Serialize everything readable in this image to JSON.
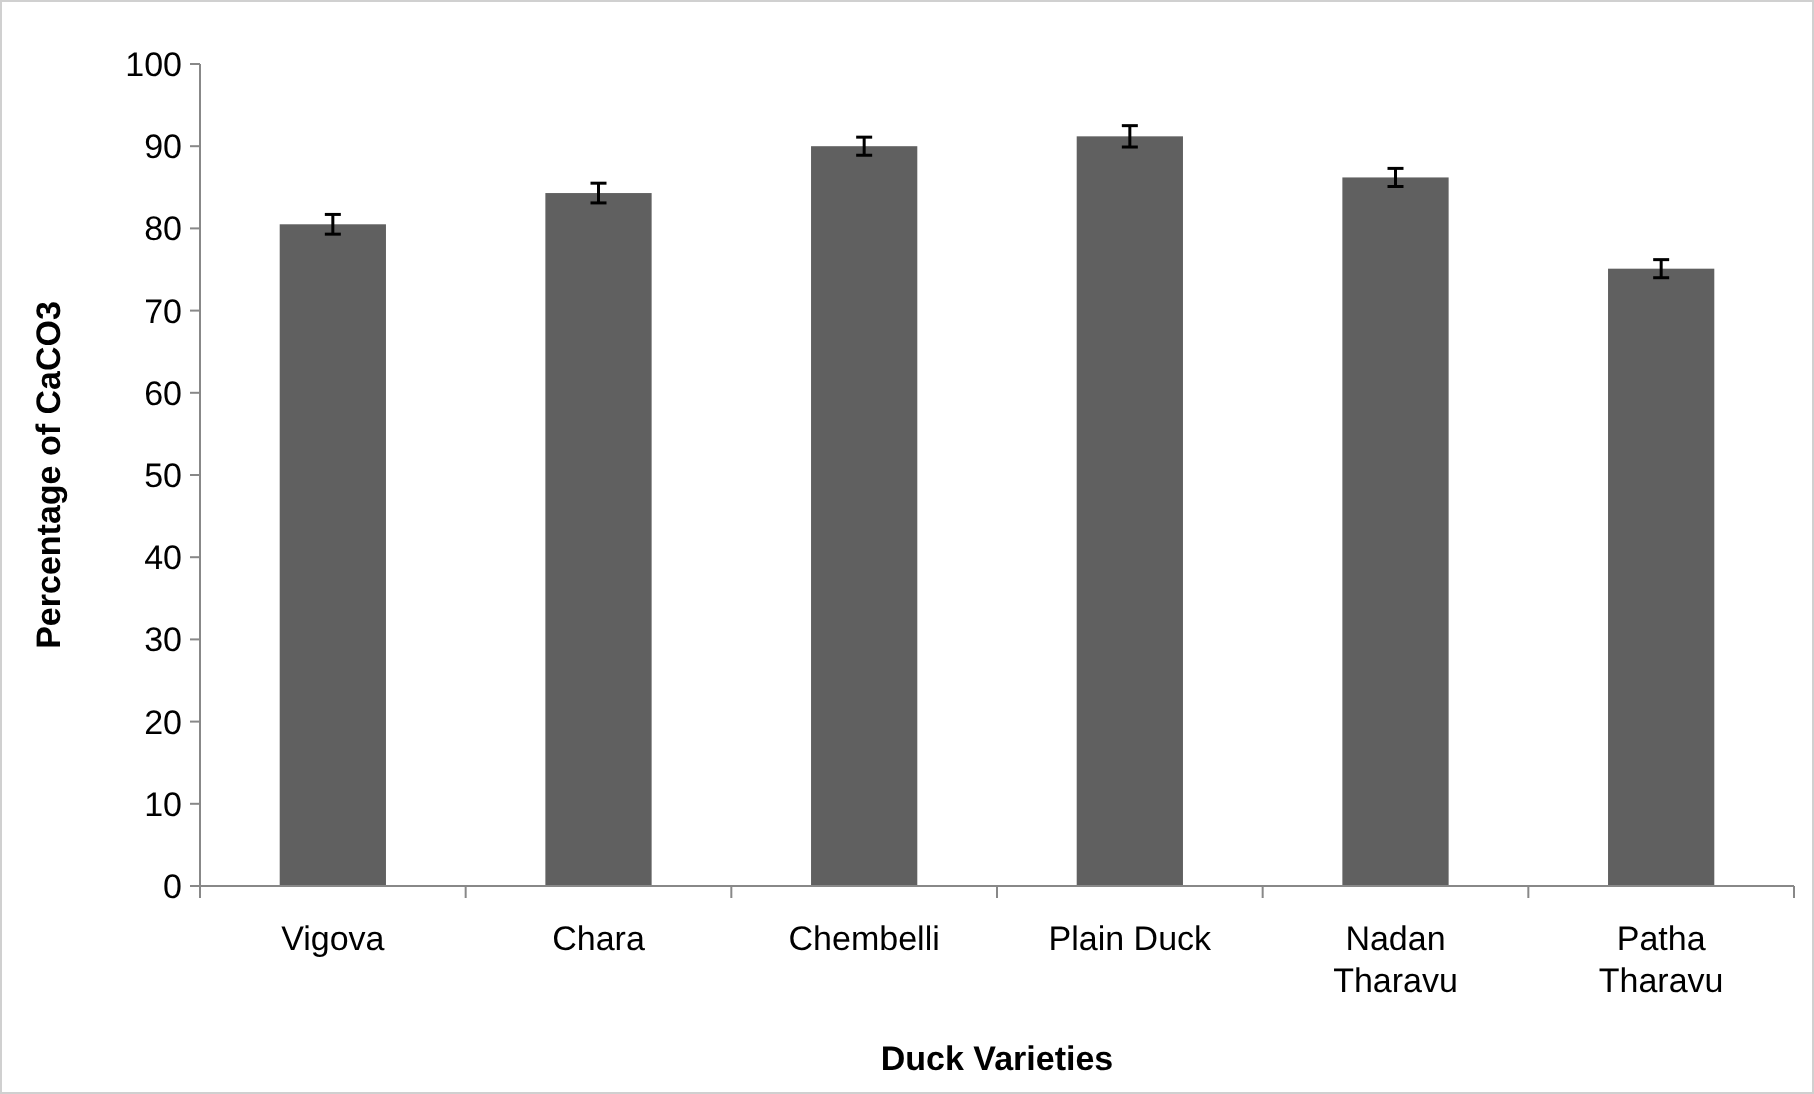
{
  "chart_data": {
    "type": "bar",
    "xlabel": "Duck Varieties",
    "ylabel": "Percentage of CaCO3",
    "categories": [
      "Vigova",
      "Chara",
      "Chembelli",
      "Plain Duck",
      "Nadan Tharavu",
      "Patha Tharavu"
    ],
    "values": [
      80.5,
      84.3,
      90.0,
      91.2,
      86.2,
      75.1
    ],
    "errors": [
      1.2,
      1.2,
      1.1,
      1.3,
      1.1,
      1.1
    ],
    "color": "#606060",
    "ylim": [
      0,
      100
    ],
    "yticks": [
      0,
      10,
      20,
      30,
      40,
      50,
      60,
      70,
      80,
      90,
      100
    ],
    "grid": false
  }
}
